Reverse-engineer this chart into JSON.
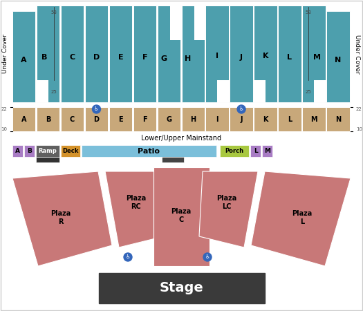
{
  "bg_color": "#ffffff",
  "teal_color": "#4d9fad",
  "tan_color": "#c8a87a",
  "rose_color": "#c87878",
  "stage_color": "#3a3a3a",
  "patio_color": "#7bbfda",
  "purple_color": "#a87cc4",
  "gray_color": "#606060",
  "orange_color": "#d4922a",
  "green_color": "#a8c840",
  "sections": [
    "A",
    "B",
    "C",
    "D",
    "E",
    "F",
    "G",
    "H",
    "I",
    "J",
    "K",
    "L",
    "M",
    "N"
  ],
  "border_color": "#cccccc"
}
